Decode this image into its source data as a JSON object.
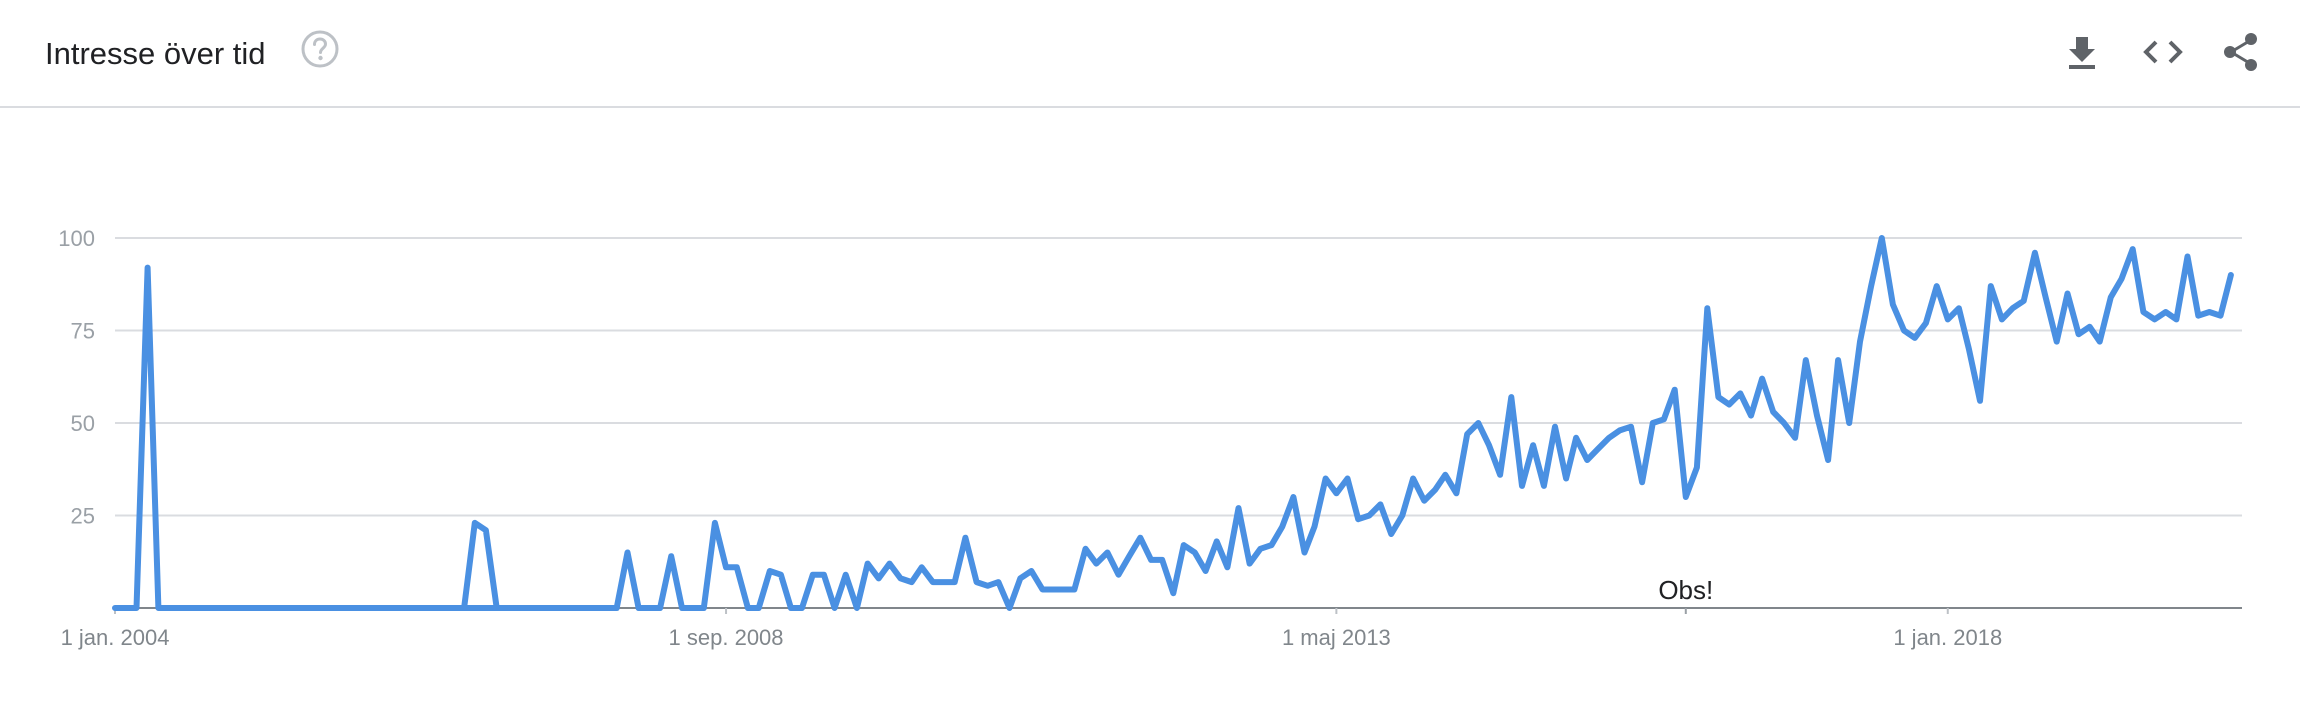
{
  "header": {
    "title": "Intresse över tid",
    "help_icon": "help-circle-icon",
    "actions": [
      {
        "name": "download-icon"
      },
      {
        "name": "embed-code-icon"
      },
      {
        "name": "share-icon"
      }
    ]
  },
  "colors": {
    "line": "#4a90e2",
    "grid": "#dadce0",
    "axis": "#80868b",
    "text": "#202124"
  },
  "chart_data": {
    "type": "line",
    "ylim": [
      0,
      100
    ],
    "yticks": [
      25,
      50,
      75,
      100
    ],
    "ytick_labels": [
      "25",
      "50",
      "75",
      "100"
    ],
    "grid": true,
    "x_range": [
      "2004-01-01",
      "2020-04-01"
    ],
    "xticks": [
      {
        "date": "2004-01-01",
        "label": "1 jan. 2004"
      },
      {
        "date": "2008-09-01",
        "label": "1 sep. 2008"
      },
      {
        "date": "2013-05-01",
        "label": "1 maj 2013"
      },
      {
        "date": "2018-01-01",
        "label": "1 jan. 2018"
      }
    ],
    "annotation": {
      "date": "2016-01-01",
      "label": "Obs!"
    },
    "series": [
      {
        "points": [
          [
            "2004-01-01",
            0
          ],
          [
            "2004-03-01",
            0
          ],
          [
            "2004-04-01",
            92
          ],
          [
            "2004-05-01",
            0
          ],
          [
            "2005-12-01",
            0
          ],
          [
            "2006-12-01",
            0
          ],
          [
            "2006-09-01",
            0
          ],
          [
            "2006-10-01",
            23
          ],
          [
            "2006-11-01",
            21
          ],
          [
            "2006-12-01",
            0
          ],
          [
            "2007-11-01",
            0
          ],
          [
            "2007-12-01",
            15
          ],
          [
            "2008-01-01",
            0
          ],
          [
            "2008-02-01",
            0
          ],
          [
            "2008-03-01",
            0
          ],
          [
            "2008-04-01",
            14
          ],
          [
            "2008-05-01",
            0
          ],
          [
            "2008-06-01",
            0
          ],
          [
            "2008-07-01",
            0
          ],
          [
            "2008-08-01",
            23
          ],
          [
            "2008-09-01",
            11
          ],
          [
            "2008-10-01",
            11
          ],
          [
            "2008-11-01",
            0
          ],
          [
            "2008-12-01",
            0
          ],
          [
            "2009-01-01",
            10
          ],
          [
            "2009-02-01",
            9
          ],
          [
            "2009-03-01",
            0
          ],
          [
            "2009-04-01",
            0
          ],
          [
            "2009-05-01",
            9
          ],
          [
            "2009-06-01",
            9
          ],
          [
            "2009-07-01",
            0
          ],
          [
            "2009-08-01",
            9
          ],
          [
            "2009-09-01",
            0
          ],
          [
            "2009-10-01",
            12
          ],
          [
            "2009-11-01",
            8
          ],
          [
            "2009-12-01",
            12
          ],
          [
            "2010-01-01",
            8
          ],
          [
            "2010-02-01",
            7
          ],
          [
            "2010-03-01",
            11
          ],
          [
            "2010-04-01",
            7
          ],
          [
            "2010-05-01",
            7
          ],
          [
            "2010-06-01",
            7
          ],
          [
            "2010-07-01",
            19
          ],
          [
            "2010-08-01",
            7
          ],
          [
            "2010-09-01",
            6
          ],
          [
            "2010-10-01",
            7
          ],
          [
            "2010-11-01",
            0
          ],
          [
            "2010-12-01",
            8
          ],
          [
            "2011-01-01",
            10
          ],
          [
            "2011-02-01",
            5
          ],
          [
            "2011-03-01",
            5
          ],
          [
            "2011-04-01",
            5
          ],
          [
            "2011-05-01",
            5
          ],
          [
            "2011-06-01",
            16
          ],
          [
            "2011-07-01",
            12
          ],
          [
            "2011-08-01",
            15
          ],
          [
            "2011-09-01",
            9
          ],
          [
            "2011-10-01",
            14
          ],
          [
            "2011-11-01",
            19
          ],
          [
            "2011-12-01",
            13
          ],
          [
            "2012-01-01",
            13
          ],
          [
            "2012-02-01",
            4
          ],
          [
            "2012-03-01",
            17
          ],
          [
            "2012-04-01",
            15
          ],
          [
            "2012-05-01",
            10
          ],
          [
            "2012-06-01",
            18
          ],
          [
            "2012-07-01",
            11
          ],
          [
            "2012-08-01",
            27
          ],
          [
            "2012-09-01",
            12
          ],
          [
            "2012-10-01",
            16
          ],
          [
            "2012-11-01",
            17
          ],
          [
            "2012-12-01",
            22
          ],
          [
            "2013-01-01",
            30
          ],
          [
            "2013-02-01",
            15
          ],
          [
            "2013-03-01",
            22
          ],
          [
            "2013-04-01",
            35
          ],
          [
            "2013-05-01",
            31
          ],
          [
            "2013-06-01",
            35
          ],
          [
            "2013-07-01",
            24
          ],
          [
            "2013-08-01",
            25
          ],
          [
            "2013-09-01",
            28
          ],
          [
            "2013-10-01",
            20
          ],
          [
            "2013-11-01",
            25
          ],
          [
            "2013-12-01",
            35
          ],
          [
            "2014-01-01",
            29
          ],
          [
            "2014-02-01",
            32
          ],
          [
            "2014-03-01",
            36
          ],
          [
            "2014-04-01",
            31
          ],
          [
            "2014-05-01",
            47
          ],
          [
            "2014-06-01",
            50
          ],
          [
            "2014-07-01",
            44
          ],
          [
            "2014-08-01",
            36
          ],
          [
            "2014-09-01",
            57
          ],
          [
            "2014-10-01",
            33
          ],
          [
            "2014-11-01",
            44
          ],
          [
            "2014-12-01",
            33
          ],
          [
            "2015-01-01",
            49
          ],
          [
            "2015-02-01",
            35
          ],
          [
            "2015-03-01",
            46
          ],
          [
            "2015-04-01",
            40
          ],
          [
            "2015-05-01",
            43
          ],
          [
            "2015-06-01",
            46
          ],
          [
            "2015-07-01",
            48
          ],
          [
            "2015-08-01",
            49
          ],
          [
            "2015-09-01",
            34
          ],
          [
            "2015-10-01",
            50
          ],
          [
            "2015-11-01",
            51
          ],
          [
            "2015-12-01",
            59
          ],
          [
            "2016-01-01",
            30
          ],
          [
            "2016-02-01",
            38
          ],
          [
            "2016-03-01",
            81
          ],
          [
            "2016-04-01",
            57
          ],
          [
            "2016-05-01",
            55
          ],
          [
            "2016-06-01",
            58
          ],
          [
            "2016-07-01",
            52
          ],
          [
            "2016-08-01",
            62
          ],
          [
            "2016-09-01",
            53
          ],
          [
            "2016-10-01",
            50
          ],
          [
            "2016-11-01",
            46
          ],
          [
            "2016-12-01",
            67
          ],
          [
            "2017-01-01",
            52
          ],
          [
            "2017-02-01",
            40
          ],
          [
            "2017-03-01",
            67
          ],
          [
            "2017-04-01",
            50
          ],
          [
            "2017-05-01",
            72
          ],
          [
            "2017-06-01",
            87
          ],
          [
            "2017-07-01",
            100
          ],
          [
            "2017-08-01",
            82
          ],
          [
            "2017-09-01",
            75
          ],
          [
            "2017-10-01",
            73
          ],
          [
            "2017-11-01",
            77
          ],
          [
            "2017-12-01",
            87
          ],
          [
            "2018-01-01",
            78
          ],
          [
            "2018-02-01",
            81
          ],
          [
            "2018-03-01",
            70
          ],
          [
            "2018-04-01",
            56
          ],
          [
            "2018-05-01",
            87
          ],
          [
            "2018-06-01",
            78
          ],
          [
            "2018-07-01",
            81
          ],
          [
            "2018-08-01",
            83
          ],
          [
            "2018-09-01",
            96
          ],
          [
            "2018-10-01",
            84
          ],
          [
            "2018-11-01",
            72
          ],
          [
            "2018-12-01",
            85
          ],
          [
            "2019-01-01",
            74
          ],
          [
            "2019-02-01",
            76
          ],
          [
            "2019-03-01",
            72
          ],
          [
            "2019-04-01",
            84
          ],
          [
            "2019-05-01",
            89
          ],
          [
            "2019-06-01",
            97
          ],
          [
            "2019-07-01",
            80
          ],
          [
            "2019-08-01",
            78
          ],
          [
            "2019-09-01",
            80
          ],
          [
            "2019-10-01",
            78
          ],
          [
            "2019-11-01",
            95
          ],
          [
            "2019-12-01",
            79
          ],
          [
            "2020-01-01",
            80
          ],
          [
            "2020-02-01",
            79
          ],
          [
            "2020-03-01",
            90
          ]
        ]
      }
    ]
  }
}
